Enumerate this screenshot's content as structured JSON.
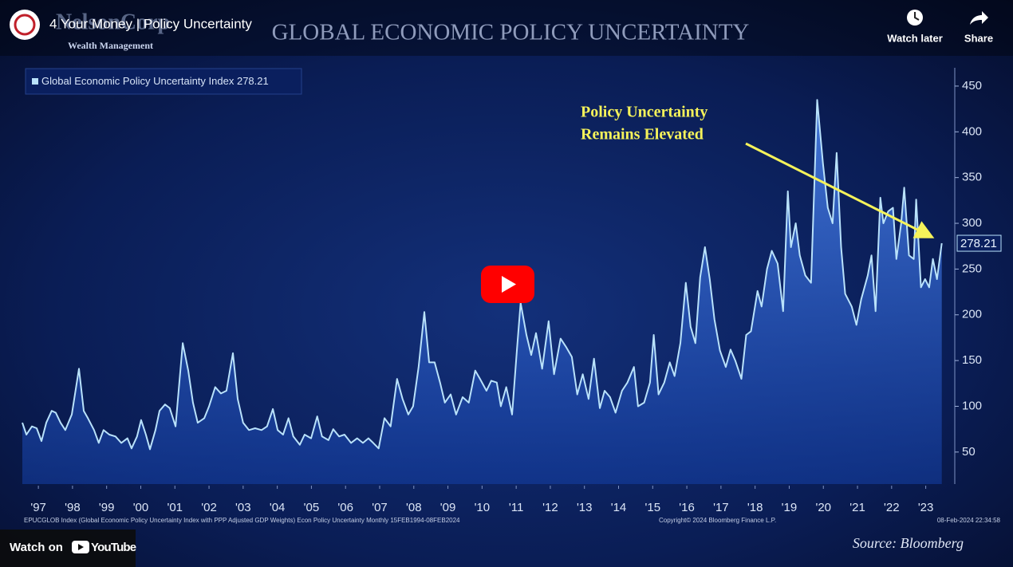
{
  "video": {
    "title": "4 Your Money | Policy Uncertainty",
    "watch_later": "Watch later",
    "share": "Share",
    "watch_on": "Watch on",
    "youtube": "YouTube"
  },
  "branding": {
    "company": "NelsonCorp",
    "tagline": "Wealth Management"
  },
  "footer": {
    "description": "EPUCGLOB Index (Global Economic Policy Uncertainty Index with PPP Adjusted GDP Weights) Econ Policy Uncertainty  Monthly 15FEB1994-08FEB2024",
    "copyright": "Copyright© 2024 Bloomberg Finance L.P.",
    "timestamp": "08-Feb-2024 22:34:58"
  },
  "chart_data": {
    "type": "line",
    "title": "GLOBAL ECONOMIC POLICY UNCERTAINTY",
    "annotation": [
      "Policy Uncertainty",
      "Remains Elevated"
    ],
    "source": "Source: Bloomberg",
    "x": [
      1997.03,
      1997.15,
      1997.31,
      1997.45,
      1997.59,
      1997.73,
      1997.89,
      1998.01,
      1998.15,
      1998.29,
      1998.48,
      1998.69,
      1998.83,
      1998.95,
      1999.13,
      1999.27,
      1999.41,
      1999.58,
      1999.76,
      1999.93,
      2000.11,
      2000.23,
      2000.39,
      2000.51,
      2000.65,
      2000.77,
      2000.93,
      2001.05,
      2001.21,
      2001.35,
      2001.52,
      2001.73,
      2001.89,
      2002.03,
      2002.17,
      2002.36,
      2002.5,
      2002.68,
      2002.85,
      2003.01,
      2003.2,
      2003.34,
      2003.5,
      2003.67,
      2003.85,
      2004.04,
      2004.2,
      2004.37,
      2004.51,
      2004.67,
      2004.83,
      2004.97,
      2005.16,
      2005.3,
      2005.49,
      2005.67,
      2005.81,
      2006.0,
      2006.14,
      2006.31,
      2006.47,
      2006.66,
      2006.84,
      2007.01,
      2007.17,
      2007.31,
      2007.47,
      2007.64,
      2007.82,
      2008.01,
      2008.17,
      2008.34,
      2008.48,
      2008.64,
      2008.81,
      2008.95,
      2009.11,
      2009.27,
      2009.41,
      2009.58,
      2009.74,
      2009.93,
      2010.11,
      2010.3,
      2010.44,
      2010.63,
      2010.77,
      2010.93,
      2011.05,
      2011.21,
      2011.38,
      2011.52,
      2011.63,
      2011.8,
      2011.94,
      2012.08,
      2012.26,
      2012.45,
      2012.61,
      2012.8,
      2012.96,
      2013.13,
      2013.29,
      2013.45,
      2013.62,
      2013.78,
      2013.95,
      2014.09,
      2014.25,
      2014.41,
      2014.6,
      2014.76,
      2014.95,
      2015.07,
      2015.25,
      2015.42,
      2015.53,
      2015.67,
      2015.84,
      2016.0,
      2016.14,
      2016.31,
      2016.47,
      2016.61,
      2016.75,
      2016.89,
      2017.03,
      2017.17,
      2017.31,
      2017.47,
      2017.64,
      2017.78,
      2017.92,
      2018.1,
      2018.24,
      2018.38,
      2018.57,
      2018.69,
      2018.85,
      2018.99,
      2019.16,
      2019.32,
      2019.46,
      2019.55,
      2019.69,
      2019.81,
      2019.97,
      2020.14,
      2020.32,
      2020.49,
      2020.63,
      2020.77,
      2020.89,
      2021.02,
      2021.14,
      2021.33,
      2021.47,
      2021.61,
      2021.8,
      2021.91,
      2022.03,
      2022.17,
      2022.26,
      2022.4,
      2022.54,
      2022.64,
      2022.78,
      2022.87,
      2023.01,
      2023.15,
      2023.22,
      2023.36,
      2023.48,
      2023.6,
      2023.71,
      2023.83,
      2023.97
    ],
    "series": [
      {
        "name": "Global Economic Policy Uncertainty Index",
        "color": "#b9e2fb",
        "values": [
          82,
          69,
          78,
          76,
          62,
          82,
          95,
          93,
          82,
          74,
          91,
          141,
          95,
          87,
          74,
          60,
          74,
          69,
          67,
          60,
          65,
          54,
          67,
          85,
          69,
          53,
          74,
          95,
          102,
          98,
          78,
          169,
          139,
          104,
          82,
          87,
          100,
          121,
          114,
          117,
          158,
          108,
          82,
          74,
          76,
          74,
          78,
          97,
          74,
          69,
          87,
          67,
          58,
          69,
          65,
          89,
          67,
          63,
          75,
          67,
          69,
          60,
          65,
          60,
          65,
          60,
          54,
          87,
          78,
          130,
          108,
          91,
          100,
          143,
          203,
          148,
          148,
          126,
          104,
          113,
          91,
          110,
          104,
          139,
          130,
          117,
          128,
          126,
          100,
          121,
          91,
          161,
          213,
          178,
          156,
          180,
          141,
          193,
          135,
          174,
          165,
          154,
          113,
          135,
          108,
          152,
          98,
          117,
          110,
          93,
          117,
          126,
          143,
          100,
          104,
          126,
          178,
          113,
          126,
          148,
          133,
          169,
          235,
          187,
          169,
          241,
          274,
          239,
          195,
          161,
          143,
          162,
          150,
          130,
          178,
          182,
          226,
          209,
          250,
          270,
          256,
          204,
          335,
          274,
          300,
          265,
          243,
          235,
          435,
          365,
          317,
          300,
          377,
          274,
          223,
          209,
          189,
          217,
          243,
          265,
          204,
          328,
          300,
          313,
          317,
          261,
          300,
          339,
          265,
          261,
          326,
          230,
          239,
          230,
          261,
          239,
          278.21
        ]
      }
    ],
    "xlim": [
      1997.03,
      2024.0
    ],
    "xticks": [
      {
        "value": 1997.5,
        "label": "'97"
      },
      {
        "value": 1998.5,
        "label": "'98"
      },
      {
        "value": 1999.5,
        "label": "'99"
      },
      {
        "value": 2000.5,
        "label": "'00"
      },
      {
        "value": 2001.5,
        "label": "'01"
      },
      {
        "value": 2002.5,
        "label": "'02"
      },
      {
        "value": 2003.5,
        "label": "'03"
      },
      {
        "value": 2004.5,
        "label": "'04"
      },
      {
        "value": 2005.5,
        "label": "'05"
      },
      {
        "value": 2006.5,
        "label": "'06"
      },
      {
        "value": 2007.5,
        "label": "'07"
      },
      {
        "value": 2008.5,
        "label": "'08"
      },
      {
        "value": 2009.5,
        "label": "'09"
      },
      {
        "value": 2010.5,
        "label": "'10"
      },
      {
        "value": 2011.5,
        "label": "'11"
      },
      {
        "value": 2012.5,
        "label": "'12"
      },
      {
        "value": 2013.5,
        "label": "'13"
      },
      {
        "value": 2014.5,
        "label": "'14"
      },
      {
        "value": 2015.5,
        "label": "'15"
      },
      {
        "value": 2016.5,
        "label": "'16"
      },
      {
        "value": 2017.5,
        "label": "'17"
      },
      {
        "value": 2018.5,
        "label": "'18"
      },
      {
        "value": 2019.5,
        "label": "'19"
      },
      {
        "value": 2020.5,
        "label": "'20"
      },
      {
        "value": 2021.5,
        "label": "'21"
      },
      {
        "value": 2022.5,
        "label": "'22"
      },
      {
        "value": 2023.5,
        "label": "'23"
      }
    ],
    "ylim": [
      15,
      470
    ],
    "yticks": [
      50,
      100,
      150,
      200,
      250,
      300,
      350,
      400,
      450
    ],
    "y_axis_side": "right"
  }
}
